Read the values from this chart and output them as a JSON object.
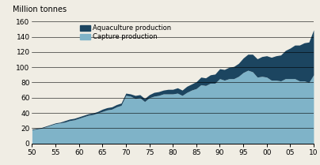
{
  "title": "Million tonnes",
  "ylim": [
    0,
    160
  ],
  "yticks": [
    0,
    20,
    40,
    60,
    80,
    100,
    120,
    140,
    160
  ],
  "xtick_positions": [
    50,
    55,
    60,
    65,
    70,
    75,
    80,
    85,
    90,
    95,
    100,
    105,
    110
  ],
  "xticklabels": [
    "50",
    "55",
    "60",
    "65",
    "70",
    "75",
    "80",
    "85",
    "90",
    "95",
    "00",
    "05",
    "10"
  ],
  "capture_color": "#7fb3c8",
  "aquaculture_color": "#1c4560",
  "background_color": "#f0ede4",
  "years_x": [
    50,
    51,
    52,
    53,
    54,
    55,
    56,
    57,
    58,
    59,
    60,
    61,
    62,
    63,
    64,
    65,
    66,
    67,
    68,
    69,
    70,
    71,
    72,
    73,
    74,
    75,
    76,
    77,
    78,
    79,
    80,
    81,
    82,
    83,
    84,
    85,
    86,
    87,
    88,
    89,
    90,
    91,
    92,
    93,
    94,
    95,
    96,
    97,
    98,
    99,
    100,
    101,
    102,
    103,
    104,
    105,
    106,
    107,
    108,
    109,
    110
  ],
  "capture": [
    18,
    19,
    20,
    22,
    24,
    26,
    27,
    28,
    30,
    31,
    33,
    35,
    37,
    38,
    40,
    42,
    44,
    45,
    48,
    50,
    63,
    62,
    59,
    60,
    55,
    60,
    62,
    63,
    65,
    65,
    65,
    66,
    63,
    67,
    70,
    72,
    77,
    76,
    79,
    79,
    85,
    83,
    85,
    85,
    88,
    93,
    96,
    94,
    87,
    88,
    87,
    83,
    83,
    82,
    85,
    85,
    85,
    82,
    82,
    80,
    90
  ],
  "aquaculture": [
    1,
    1,
    1,
    1,
    1,
    1,
    1,
    2,
    2,
    2,
    2,
    2,
    2,
    2,
    2,
    3,
    3,
    3,
    3,
    3,
    3,
    3,
    4,
    4,
    4,
    4,
    5,
    5,
    5,
    6,
    6,
    7,
    7,
    8,
    8,
    9,
    10,
    10,
    11,
    12,
    13,
    14,
    15,
    16,
    17,
    19,
    21,
    23,
    24,
    26,
    28,
    30,
    32,
    34,
    37,
    40,
    44,
    47,
    50,
    53,
    59
  ]
}
